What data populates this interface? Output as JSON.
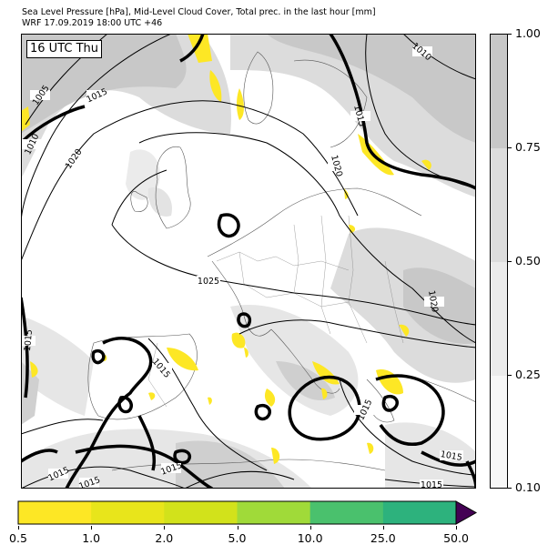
{
  "header": {
    "title_line1": "Sea Level Pressure [hPa], Mid-Level Cloud Cover, Total prec. in the last hour [mm]",
    "title_line2": "WRF 17.09.2019 18:00 UTC +46"
  },
  "map": {
    "time_label": "16 UTC Thu",
    "isobar_labels": [
      "1005",
      "1010",
      "1015",
      "1020",
      "1025",
      "1020",
      "1015",
      "1015",
      "1010",
      "1015",
      "1020",
      "1015",
      "1015",
      "1015",
      "1015",
      "1015",
      "1015"
    ]
  },
  "cloud_cover_legend": {
    "levels": [
      0.1,
      0.25,
      0.5,
      0.75,
      1.0
    ],
    "labels": [
      "1.00",
      "0.75",
      "0.50",
      "0.25",
      "0.10"
    ],
    "colors": [
      "#c8c8c8",
      "#dcdcdc",
      "#ebebeb",
      "#f7f7f7"
    ]
  },
  "precip_legend": {
    "labels": [
      "0.5",
      "1.0",
      "2.0",
      "5.0",
      "10.0",
      "25.0",
      "50.0"
    ],
    "colors": [
      "#fde725",
      "#e8e51b",
      "#d2e21b",
      "#a0da39",
      "#4ac16d",
      "#2db27d",
      "#3e4989",
      "#440154"
    ]
  },
  "colors": {
    "cloud_light": "#e6e6e6",
    "cloud_dark": "#c4c4c4",
    "precip": "#fde725",
    "isobar": "#000000"
  }
}
